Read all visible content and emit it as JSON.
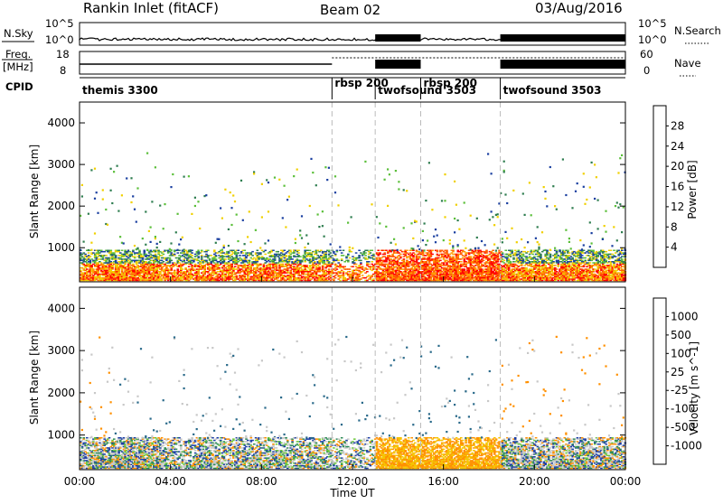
{
  "header": {
    "station": "Rankin Inlet (fitACF)",
    "beam": "Beam 02",
    "date": "03/Aug/2016"
  },
  "strip_nsky": {
    "left_label": "N.Sky",
    "left_ticks": [
      "10^5",
      "10^0"
    ],
    "right_label": "N.Search",
    "right_ticks": [
      "10^5",
      "10^0"
    ]
  },
  "strip_freq": {
    "left_label_1": "Freq.",
    "left_label_2": "[MHz]",
    "left_ticks": [
      "18",
      "8"
    ],
    "right_label": "Nave",
    "right_ticks": [
      "60",
      "0"
    ]
  },
  "cpid": {
    "label": "CPID",
    "segments": [
      {
        "name": "themis 3300",
        "start_hour": 0.0
      },
      {
        "name": "rbsp 200",
        "start_hour": 11.1
      },
      {
        "name": "twofsound 3503",
        "start_hour": 13.0
      },
      {
        "name": "rbsp 200",
        "start_hour": 15.0
      },
      {
        "name": "twofsound 3503",
        "start_hour": 18.5
      }
    ]
  },
  "x_axis": {
    "label": "Time UT",
    "ticks": [
      "00:00",
      "04:00",
      "08:00",
      "12:00",
      "16:00",
      "20:00",
      "00:00"
    ],
    "range_hours": [
      0,
      24
    ]
  },
  "power_panel": {
    "ylabel": "Slant Range [km]",
    "yticks": [
      "1000",
      "2000",
      "3000",
      "4000"
    ],
    "colorbar_label": "Power [dB]",
    "colorbar_ticks": [
      "4",
      "8",
      "12",
      "16",
      "20",
      "24",
      "28"
    ],
    "colors": [
      "#0000ff",
      "#1a3fa0",
      "#2e7d4f",
      "#5bbf3a",
      "#f0d000",
      "#ff9a00",
      "#ff5a00",
      "#ff0000"
    ]
  },
  "velocity_panel": {
    "ylabel": "Slant Range [km]",
    "yticks": [
      "1000",
      "2000",
      "3000",
      "4000"
    ],
    "colorbar_label": "Velocity [m s^-1]",
    "colorbar_ticks": [
      "1000",
      "500",
      "100",
      "25",
      "-25",
      "-100",
      "-500",
      "-1000"
    ],
    "colors": [
      "#1d3fa6",
      "#2a6a8a",
      "#2e8b57",
      "#6bc83a",
      "#c8c8c8",
      "#f5c400",
      "#ff9000",
      "#ff5000",
      "#ff0000"
    ]
  },
  "chart_data": {
    "type": "heatmap",
    "title": "Rankin Inlet (fitACF)",
    "x_range_hours": [
      0,
      24
    ],
    "y_range_km": [
      180,
      4500
    ],
    "cpid_boundaries_hours": [
      11.1,
      13.0,
      15.0,
      18.5
    ],
    "note_values": "range-time power (dB) and Doppler velocity (m/s) maps; dense scatter below ~900 km"
  }
}
